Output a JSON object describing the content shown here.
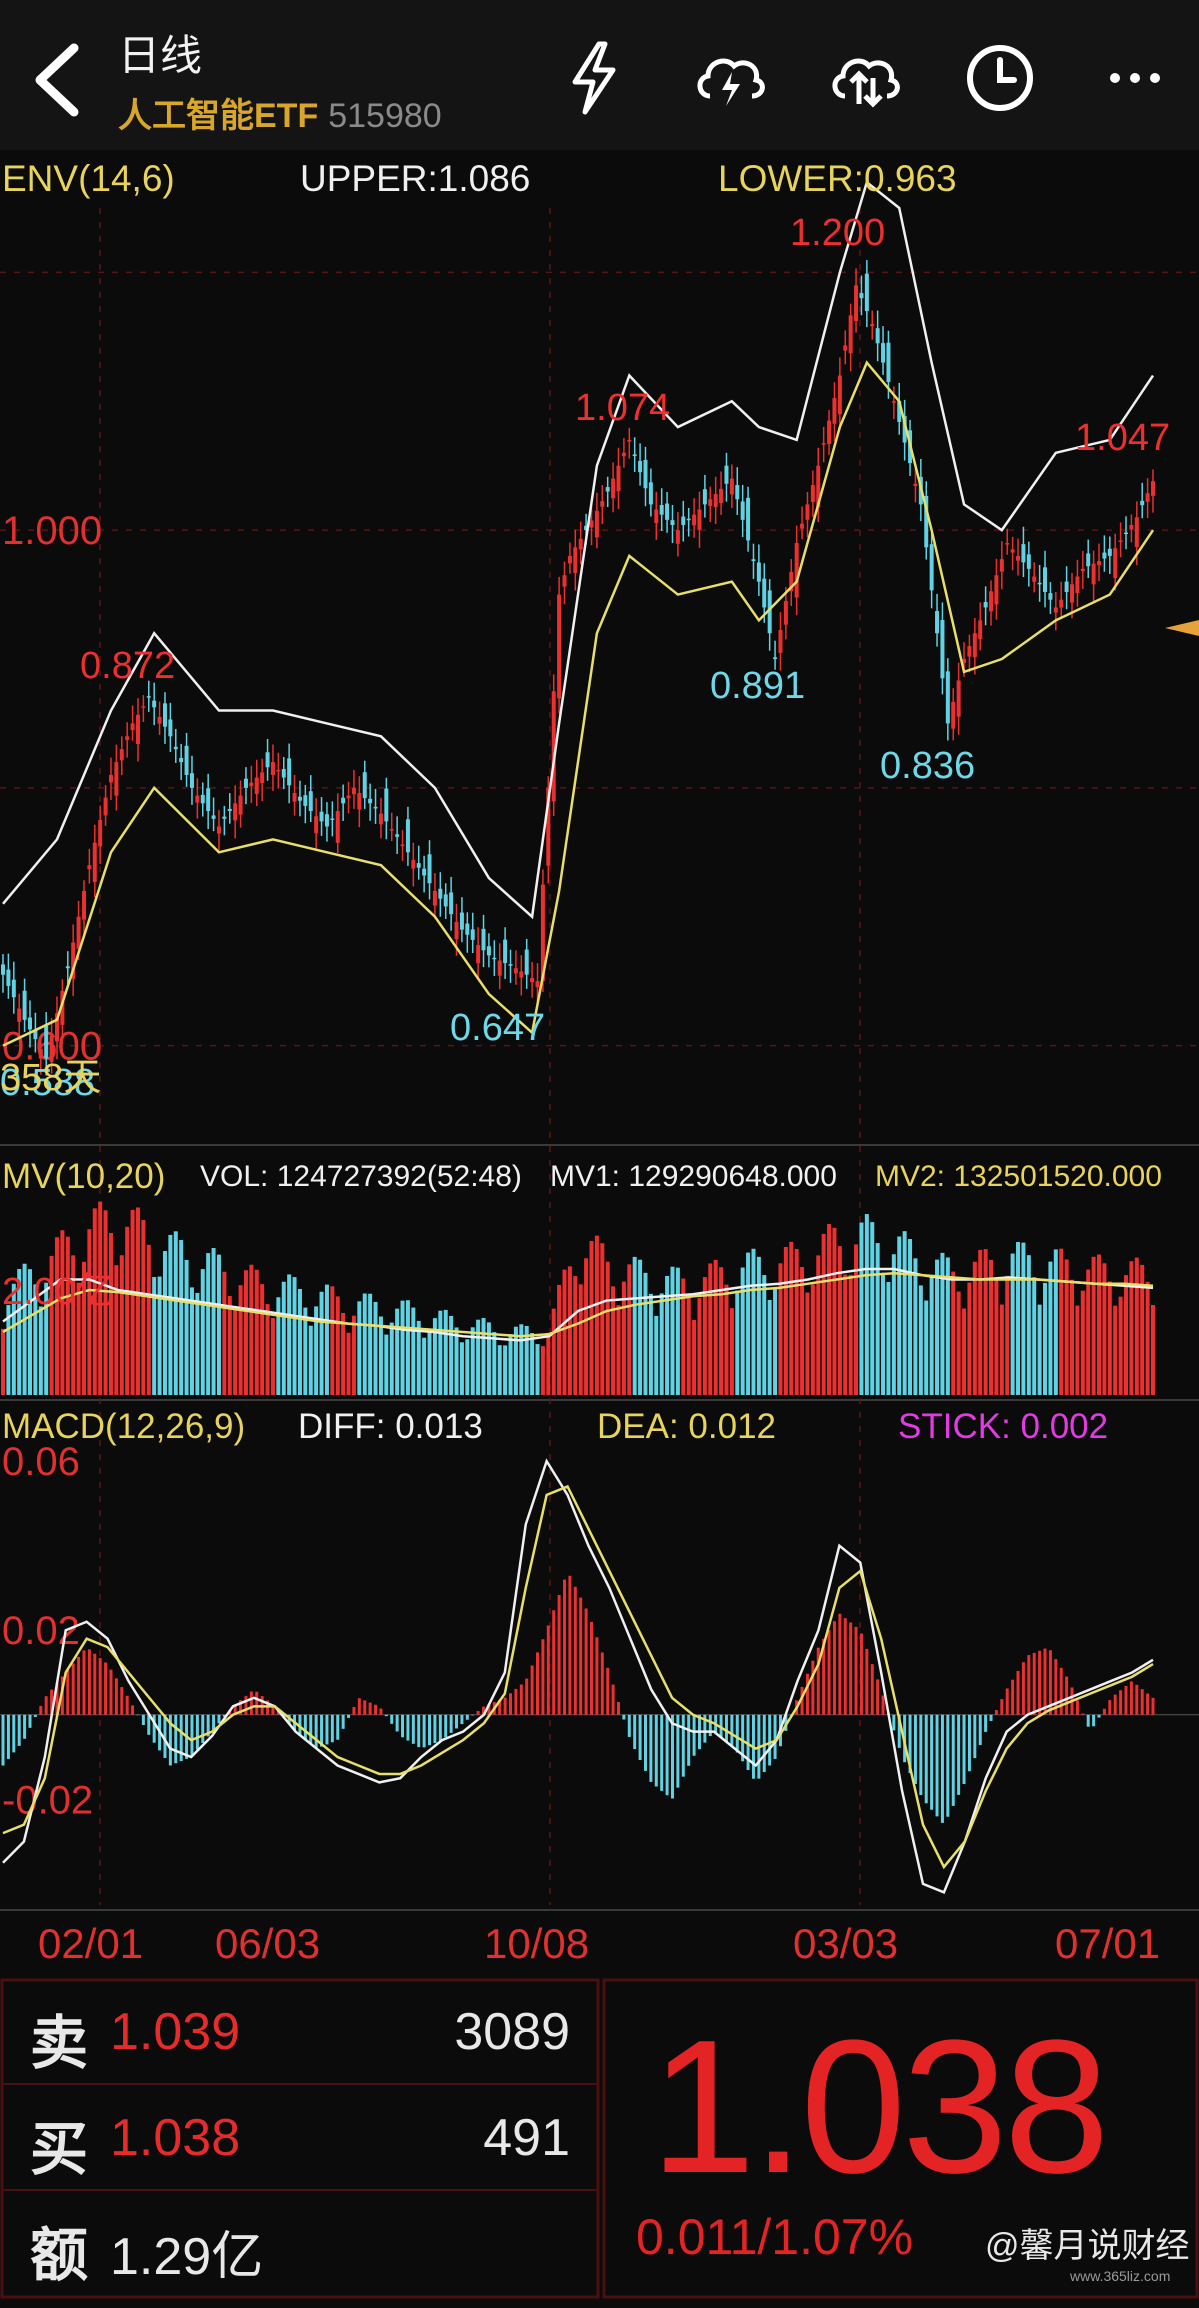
{
  "header": {
    "title": "日线",
    "name": "人工智能ETF",
    "code": "515980",
    "icons": [
      "back-arrow-icon",
      "lightning-icon",
      "cloud-lightning-icon",
      "cloud-sync-icon",
      "clock-icon",
      "more-icon"
    ]
  },
  "env": {
    "label": "ENV(14,6)",
    "upper": "UPPER:1.086",
    "lower": "LOWER:0.963"
  },
  "mv": {
    "label": "MV(10,20)",
    "vol": "VOL: 124727392(52:48)",
    "mv1": "MV1: 129290648.000",
    "mv2": "MV2: 132501520.000",
    "axis_label": "2.00亿"
  },
  "macd": {
    "label": "MACD(12,26,9)",
    "diff": "DIFF: 0.013",
    "dea": "DEA: 0.012",
    "stick": "STICK: 0.002"
  },
  "quote": {
    "sell_label": "卖",
    "sell_price": "1.039",
    "sell_vol": "3089",
    "buy_label": "买",
    "buy_price": "1.038",
    "buy_vol": "491",
    "amount_label": "额",
    "amount": "1.29亿",
    "last": "1.038",
    "change": "0.011/1.07%"
  },
  "watermark": "@馨月说财经",
  "watermark_url": "www.365liz.com",
  "colors": {
    "up": "#ec2f2f",
    "down": "#5fd3e3",
    "upper": "#f0f0f0",
    "lower": "#e8df6a",
    "bg": "#0b0b0b",
    "grid": "#5a1414"
  },
  "chart_data": [
    {
      "type": "candlestick",
      "title": "ENV(14,6)",
      "y_ticks": [
        "1.000",
        "0.600"
      ],
      "x_ticks": [
        "02/01",
        "06/03",
        "10/08",
        "03/03",
        "07/01"
      ],
      "annotations": [
        {
          "text": "0.872",
          "color": "red"
        },
        {
          "text": "0.647",
          "color": "cyan"
        },
        {
          "text": "1.074",
          "color": "red"
        },
        {
          "text": "0.891",
          "color": "cyan"
        },
        {
          "text": "1.200",
          "color": "red"
        },
        {
          "text": "0.836",
          "color": "cyan"
        },
        {
          "text": "1.047",
          "color": "red"
        },
        {
          "text": "0.588",
          "color": "cyan"
        },
        {
          "text": "358天",
          "color": "yellow"
        }
      ],
      "close_path": [
        {
          "x": 0,
          "y": 0.655
        },
        {
          "x": 4,
          "y": 0.62
        },
        {
          "x": 8,
          "y": 0.59
        },
        {
          "x": 12,
          "y": 0.66
        },
        {
          "x": 16,
          "y": 0.74
        },
        {
          "x": 20,
          "y": 0.81
        },
        {
          "x": 24,
          "y": 0.85
        },
        {
          "x": 27,
          "y": 0.87
        },
        {
          "x": 31,
          "y": 0.84
        },
        {
          "x": 35,
          "y": 0.8
        },
        {
          "x": 40,
          "y": 0.77
        },
        {
          "x": 45,
          "y": 0.8
        },
        {
          "x": 50,
          "y": 0.82
        },
        {
          "x": 55,
          "y": 0.79
        },
        {
          "x": 60,
          "y": 0.77
        },
        {
          "x": 65,
          "y": 0.8
        },
        {
          "x": 70,
          "y": 0.78
        },
        {
          "x": 75,
          "y": 0.75
        },
        {
          "x": 80,
          "y": 0.72
        },
        {
          "x": 85,
          "y": 0.69
        },
        {
          "x": 90,
          "y": 0.67
        },
        {
          "x": 95,
          "y": 0.66
        },
        {
          "x": 99,
          "y": 0.65
        },
        {
          "x": 101,
          "y": 0.8
        },
        {
          "x": 103,
          "y": 0.95
        },
        {
          "x": 105,
          "y": 0.98
        },
        {
          "x": 108,
          "y": 1.0
        },
        {
          "x": 112,
          "y": 1.03
        },
        {
          "x": 116,
          "y": 1.07
        },
        {
          "x": 120,
          "y": 1.02
        },
        {
          "x": 125,
          "y": 1.0
        },
        {
          "x": 130,
          "y": 1.02
        },
        {
          "x": 135,
          "y": 1.04
        },
        {
          "x": 140,
          "y": 0.96
        },
        {
          "x": 143,
          "y": 0.9
        },
        {
          "x": 147,
          "y": 0.99
        },
        {
          "x": 151,
          "y": 1.05
        },
        {
          "x": 155,
          "y": 1.12
        },
        {
          "x": 158,
          "y": 1.19
        },
        {
          "x": 161,
          "y": 1.16
        },
        {
          "x": 165,
          "y": 1.1
        },
        {
          "x": 170,
          "y": 1.02
        },
        {
          "x": 173,
          "y": 0.92
        },
        {
          "x": 175,
          "y": 0.85
        },
        {
          "x": 178,
          "y": 0.9
        },
        {
          "x": 182,
          "y": 0.94
        },
        {
          "x": 186,
          "y": 0.99
        },
        {
          "x": 190,
          "y": 0.97
        },
        {
          "x": 195,
          "y": 0.94
        },
        {
          "x": 200,
          "y": 0.97
        },
        {
          "x": 205,
          "y": 0.98
        },
        {
          "x": 210,
          "y": 1.01
        },
        {
          "x": 213,
          "y": 1.038
        }
      ],
      "env_upper": [
        {
          "x": 0,
          "y": 0.71
        },
        {
          "x": 10,
          "y": 0.76
        },
        {
          "x": 20,
          "y": 0.86
        },
        {
          "x": 28,
          "y": 0.92
        },
        {
          "x": 40,
          "y": 0.86
        },
        {
          "x": 50,
          "y": 0.86
        },
        {
          "x": 60,
          "y": 0.85
        },
        {
          "x": 70,
          "y": 0.84
        },
        {
          "x": 80,
          "y": 0.8
        },
        {
          "x": 90,
          "y": 0.73
        },
        {
          "x": 98,
          "y": 0.7
        },
        {
          "x": 103,
          "y": 0.85
        },
        {
          "x": 110,
          "y": 1.05
        },
        {
          "x": 116,
          "y": 1.12
        },
        {
          "x": 125,
          "y": 1.08
        },
        {
          "x": 135,
          "y": 1.1
        },
        {
          "x": 140,
          "y": 1.08
        },
        {
          "x": 147,
          "y": 1.07
        },
        {
          "x": 155,
          "y": 1.2
        },
        {
          "x": 160,
          "y": 1.27
        },
        {
          "x": 166,
          "y": 1.25
        },
        {
          "x": 172,
          "y": 1.13
        },
        {
          "x": 178,
          "y": 1.02
        },
        {
          "x": 185,
          "y": 1.0
        },
        {
          "x": 195,
          "y": 1.06
        },
        {
          "x": 205,
          "y": 1.07
        },
        {
          "x": 213,
          "y": 1.12
        }
      ],
      "env_lower": [
        {
          "x": 0,
          "y": 0.6
        },
        {
          "x": 10,
          "y": 0.62
        },
        {
          "x": 20,
          "y": 0.75
        },
        {
          "x": 28,
          "y": 0.8
        },
        {
          "x": 40,
          "y": 0.75
        },
        {
          "x": 50,
          "y": 0.76
        },
        {
          "x": 60,
          "y": 0.75
        },
        {
          "x": 70,
          "y": 0.74
        },
        {
          "x": 80,
          "y": 0.7
        },
        {
          "x": 90,
          "y": 0.64
        },
        {
          "x": 98,
          "y": 0.61
        },
        {
          "x": 103,
          "y": 0.72
        },
        {
          "x": 110,
          "y": 0.92
        },
        {
          "x": 116,
          "y": 0.98
        },
        {
          "x": 125,
          "y": 0.95
        },
        {
          "x": 135,
          "y": 0.96
        },
        {
          "x": 140,
          "y": 0.93
        },
        {
          "x": 147,
          "y": 0.96
        },
        {
          "x": 155,
          "y": 1.08
        },
        {
          "x": 160,
          "y": 1.13
        },
        {
          "x": 166,
          "y": 1.1
        },
        {
          "x": 172,
          "y": 1.0
        },
        {
          "x": 178,
          "y": 0.89
        },
        {
          "x": 185,
          "y": 0.9
        },
        {
          "x": 195,
          "y": 0.93
        },
        {
          "x": 205,
          "y": 0.95
        },
        {
          "x": 213,
          "y": 1.0
        }
      ]
    },
    {
      "type": "bar",
      "title": "MV(10,20)",
      "volume_level": [
        0.45,
        0.55,
        0.65,
        0.75,
        0.8,
        0.72,
        0.65,
        0.6,
        0.55,
        0.5,
        0.48,
        0.45,
        0.42,
        0.4,
        0.38,
        0.35,
        0.32,
        0.3,
        0.28,
        0.3,
        0.7,
        0.6,
        0.55,
        0.52,
        0.5,
        0.55,
        0.58,
        0.6,
        0.62,
        0.7,
        0.72,
        0.68,
        0.6,
        0.55,
        0.58,
        0.62,
        0.6,
        0.58,
        0.56,
        0.55,
        0.54
      ],
      "mv1_level": [
        0.35,
        0.45,
        0.55,
        0.55,
        0.5,
        0.48,
        0.46,
        0.44,
        0.42,
        0.4,
        0.38,
        0.36,
        0.34,
        0.33,
        0.31,
        0.3,
        0.28,
        0.27,
        0.26,
        0.28,
        0.4,
        0.45,
        0.46,
        0.47,
        0.48,
        0.5,
        0.52,
        0.53,
        0.55,
        0.58,
        0.6,
        0.6,
        0.57,
        0.55,
        0.55,
        0.56,
        0.55,
        0.54,
        0.53,
        0.52,
        0.51
      ],
      "mv2_level": [
        0.3,
        0.38,
        0.46,
        0.5,
        0.49,
        0.47,
        0.45,
        0.43,
        0.41,
        0.39,
        0.37,
        0.35,
        0.34,
        0.33,
        0.32,
        0.31,
        0.3,
        0.29,
        0.28,
        0.29,
        0.34,
        0.4,
        0.43,
        0.45,
        0.47,
        0.48,
        0.5,
        0.51,
        0.53,
        0.55,
        0.57,
        0.58,
        0.57,
        0.56,
        0.55,
        0.55,
        0.55,
        0.54,
        0.53,
        0.53,
        0.52
      ]
    },
    {
      "type": "bar",
      "title": "MACD(12,26,9)",
      "y_ticks": [
        "0.06",
        "0.02",
        "-0.02"
      ],
      "ylim": [
        -0.045,
        0.065
      ],
      "stick": [
        -0.012,
        -0.006,
        0.004,
        0.01,
        0.016,
        0.012,
        0.004,
        -0.005,
        -0.012,
        -0.01,
        -0.004,
        0.002,
        0.006,
        0.002,
        -0.004,
        -0.008,
        -0.006,
        0.004,
        0.002,
        -0.005,
        -0.008,
        -0.006,
        -0.002,
        0.002,
        0.004,
        0.008,
        0.02,
        0.034,
        0.024,
        0.01,
        -0.006,
        -0.016,
        -0.02,
        -0.01,
        -0.004,
        -0.008,
        -0.016,
        -0.01,
        0.004,
        0.016,
        0.024,
        0.02,
        0.006,
        -0.01,
        -0.02,
        -0.026,
        -0.016,
        -0.004,
        0.006,
        0.014,
        0.016,
        0.008,
        -0.004,
        0.004,
        0.008,
        0.004
      ],
      "diff": [
        -0.035,
        -0.03,
        -0.01,
        0.02,
        0.022,
        0.018,
        0.008,
        0.0,
        -0.008,
        -0.01,
        -0.005,
        0.002,
        0.004,
        0.002,
        -0.004,
        -0.008,
        -0.012,
        -0.014,
        -0.016,
        -0.015,
        -0.01,
        -0.006,
        -0.004,
        0.0,
        0.01,
        0.045,
        0.06,
        0.052,
        0.04,
        0.03,
        0.018,
        0.006,
        -0.002,
        -0.004,
        -0.004,
        -0.008,
        -0.012,
        -0.006,
        0.008,
        0.02,
        0.04,
        0.036,
        0.01,
        -0.018,
        -0.04,
        -0.042,
        -0.03,
        -0.015,
        -0.004,
        0.0,
        0.002,
        0.004,
        0.006,
        0.008,
        0.01,
        0.013
      ],
      "dea": [
        -0.028,
        -0.026,
        -0.015,
        0.01,
        0.018,
        0.016,
        0.01,
        0.004,
        -0.002,
        -0.006,
        -0.004,
        0.0,
        0.002,
        0.002,
        -0.002,
        -0.006,
        -0.01,
        -0.012,
        -0.014,
        -0.014,
        -0.012,
        -0.009,
        -0.006,
        -0.002,
        0.005,
        0.03,
        0.052,
        0.054,
        0.044,
        0.034,
        0.024,
        0.014,
        0.004,
        0.0,
        -0.002,
        -0.005,
        -0.008,
        -0.006,
        0.002,
        0.012,
        0.03,
        0.034,
        0.018,
        -0.004,
        -0.026,
        -0.036,
        -0.03,
        -0.018,
        -0.008,
        -0.002,
        0.001,
        0.003,
        0.005,
        0.007,
        0.009,
        0.012
      ]
    }
  ]
}
